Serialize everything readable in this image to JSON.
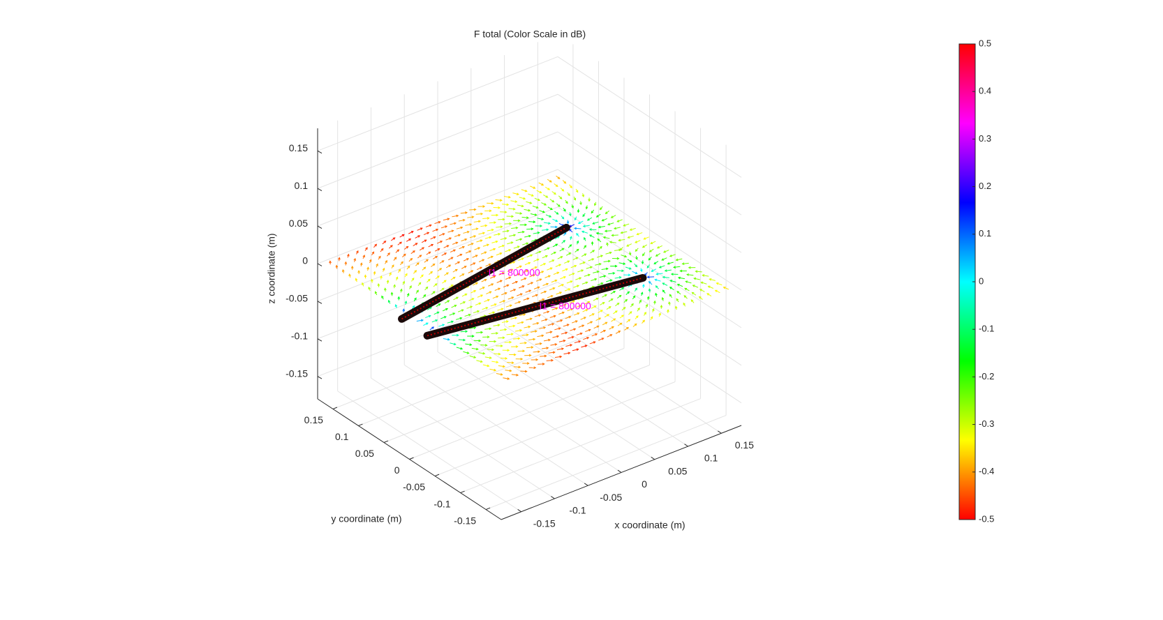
{
  "chart_data": {
    "type": "quiver3d",
    "title": "F total (Color Scale in dB)",
    "xlabel": "x coordinate (m)",
    "ylabel": "y coordinate (m)",
    "zlabel": "z coordinate (m)",
    "xlim": [
      -0.18,
      0.18
    ],
    "ylim": [
      -0.18,
      0.18
    ],
    "zlim": [
      -0.18,
      0.18
    ],
    "xticks": [
      -0.15,
      -0.1,
      -0.05,
      0,
      0.05,
      0.1,
      0.15
    ],
    "yticks": [
      -0.15,
      -0.1,
      -0.05,
      0,
      0.05,
      0.1,
      0.15
    ],
    "zticks": [
      -0.15,
      -0.1,
      -0.05,
      0,
      0.05,
      0.1,
      0.15
    ],
    "grid": true,
    "wires": [
      {
        "start": [
          -0.18,
          0.015,
          0
        ],
        "end": [
          0.105,
          0.065,
          0
        ],
        "label": "I1 = 800000"
      },
      {
        "start": [
          -0.18,
          -0.035,
          0
        ],
        "end": [
          0.105,
          -0.085,
          0
        ],
        "label": "I1 = 800000"
      }
    ],
    "colorbar": {
      "lim": [
        -0.5,
        0.5
      ],
      "ticks": [
        -0.5,
        -0.4,
        -0.3,
        -0.2,
        -0.1,
        0,
        0.1,
        0.2,
        0.3,
        0.4,
        0.5
      ]
    }
  }
}
